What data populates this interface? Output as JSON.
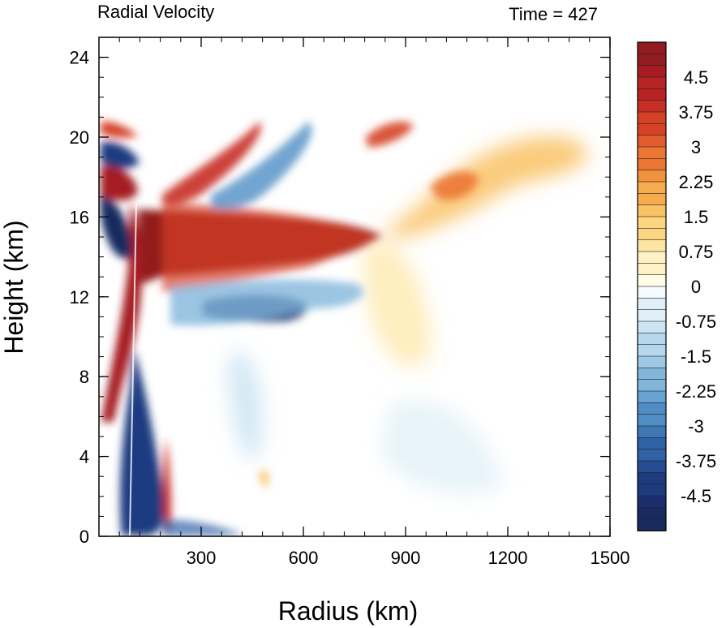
{
  "chart_data": {
    "type": "heatmap",
    "title_left": "Radial Velocity",
    "title_right": "Time = 427",
    "xlabel": "Radius (km)",
    "ylabel": "Height (km)",
    "xlim": [
      0,
      1500
    ],
    "ylim": [
      0,
      25
    ],
    "xticks": [
      300,
      600,
      900,
      1200,
      1500
    ],
    "yticks": [
      0,
      4,
      8,
      12,
      16,
      20,
      24
    ],
    "colorbar": {
      "min": -5.25,
      "max": 5.25,
      "step": 0.25,
      "labels": [
        "4.5",
        "3.75",
        "3",
        "2.25",
        "1.5",
        "0.75",
        "0",
        "-0.75",
        "-1.5",
        "-2.25",
        "-3",
        "-3.75",
        "-4.5"
      ],
      "label_values": [
        4.5,
        3.75,
        3,
        2.25,
        1.5,
        0.75,
        0,
        -0.75,
        -1.5,
        -2.25,
        -3,
        -3.75,
        -4.5
      ],
      "colors_positive": [
        "#fffbe8",
        "#fef1c5",
        "#fde6a2",
        "#fbd580",
        "#f9c264",
        "#f6ab4e",
        "#f2913e",
        "#ec7633",
        "#e35c2c",
        "#d64226",
        "#c72f24",
        "#b82323",
        "#a61c21",
        "#921c1f"
      ],
      "colors_negative": [
        "#f4fafd",
        "#e1f0f8",
        "#cde5f2",
        "#b6d8ec",
        "#9dc9e4",
        "#82b7db",
        "#67a3d0",
        "#4f8dc4",
        "#3d77b6",
        "#2f61a5",
        "#264c93",
        "#1f3b80",
        "#1b2f6e",
        "#182a5e"
      ]
    },
    "features": [
      {
        "r": 30,
        "z": 16.3,
        "v": -5.3
      },
      {
        "r": 28,
        "z": 18.7,
        "v": 4.8
      },
      {
        "r": 35,
        "z": 19.7,
        "v": -4.6
      },
      {
        "r": 30,
        "z": 20.7,
        "v": 2.6
      },
      {
        "r": 90,
        "z": 12.0,
        "v": 4.5
      },
      {
        "r": 90,
        "z": 4.5,
        "v": -4.5
      },
      {
        "r": 160,
        "z": 2.0,
        "v": -3.5
      },
      {
        "r": 330,
        "z": 14.8,
        "v": 5.5
      },
      {
        "r": 620,
        "z": 14.9,
        "v": 4.2
      },
      {
        "r": 330,
        "z": 11.4,
        "v": -4.0
      },
      {
        "r": 500,
        "z": 20.5,
        "v": 2.5
      },
      {
        "r": 1080,
        "z": 17.5,
        "v": 2.6
      },
      {
        "r": 1280,
        "z": 20.0,
        "v": 1.6
      },
      {
        "r": 950,
        "z": 9.0,
        "v": 0.7
      },
      {
        "r": 660,
        "z": 18.0,
        "v": -1.2
      }
    ]
  }
}
